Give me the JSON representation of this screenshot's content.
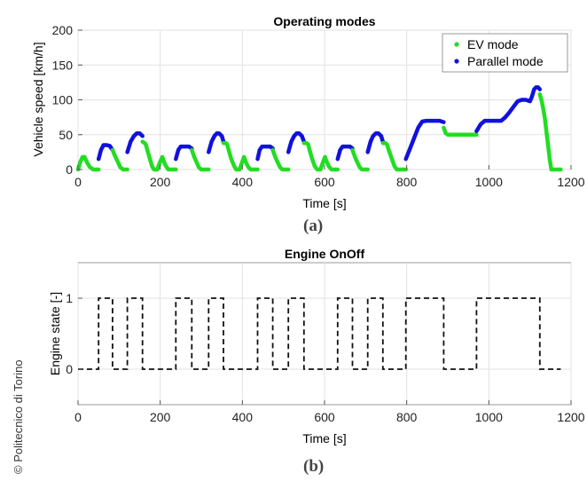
{
  "copyright": "© Politecnico di Torino",
  "panel_labels": [
    "(a)",
    "(b)"
  ],
  "colors": {
    "ev": "#22dd22",
    "parallel": "#1111dd",
    "engine": "#111111"
  },
  "chart_data": [
    {
      "type": "line",
      "title": "Operating modes",
      "xlabel": "Time [s]",
      "ylabel": "Vehicle speed [km/h]",
      "xlim": [
        0,
        1200
      ],
      "ylim": [
        0,
        200
      ],
      "xticks": [
        0,
        200,
        400,
        600,
        800,
        1000,
        1200
      ],
      "yticks": [
        0,
        50,
        100,
        150,
        200
      ],
      "grid": true,
      "legend_position": "top-right",
      "series": [
        {
          "name": "EV mode",
          "x": [
            0,
            5,
            11,
            16,
            22,
            28,
            37,
            43,
            50
          ],
          "y": [
            0,
            10,
            18,
            18,
            10,
            4,
            0,
            0,
            0
          ]
        },
        {
          "name": "Parallel mode",
          "x": [
            50,
            56,
            62,
            70,
            77,
            84
          ],
          "y": [
            15,
            28,
            35,
            35,
            34,
            28
          ]
        },
        {
          "name": "EV mode",
          "x": [
            84,
            91,
            96,
            103,
            110,
            114,
            120
          ],
          "y": [
            28,
            18,
            12,
            3,
            0,
            0,
            0
          ]
        },
        {
          "name": "Parallel mode",
          "x": [
            120,
            128,
            136,
            143,
            150,
            157
          ],
          "y": [
            25,
            40,
            48,
            52,
            52,
            48
          ]
        },
        {
          "name": "EV mode",
          "x": [
            157,
            162,
            165,
            170,
            175,
            180,
            185,
            190,
            193,
            199,
            205,
            210,
            215,
            220,
            223,
            230,
            238
          ],
          "y": [
            40,
            38,
            36,
            25,
            15,
            5,
            0,
            0,
            0,
            10,
            18,
            10,
            4,
            0,
            0,
            0,
            0
          ]
        },
        {
          "name": "Parallel mode",
          "x": [
            238,
            244,
            250,
            256,
            262,
            270,
            277
          ],
          "y": [
            15,
            28,
            33,
            33,
            33,
            33,
            30
          ]
        },
        {
          "name": "EV mode",
          "x": [
            277,
            283,
            289,
            294,
            300,
            305,
            310,
            315,
            318
          ],
          "y": [
            28,
            18,
            10,
            3,
            0,
            0,
            0,
            0,
            0
          ]
        },
        {
          "name": "Parallel mode",
          "x": [
            318,
            325,
            332,
            338,
            343,
            350,
            354
          ],
          "y": [
            25,
            40,
            48,
            52,
            52,
            48,
            40
          ]
        },
        {
          "name": "EV mode",
          "x": [
            354,
            360,
            363,
            368,
            373,
            380,
            385,
            390,
            393,
            399,
            404,
            409,
            414,
            420,
            425,
            430,
            437
          ],
          "y": [
            38,
            38,
            36,
            25,
            15,
            5,
            0,
            0,
            0,
            10,
            18,
            10,
            4,
            0,
            0,
            0,
            0
          ]
        },
        {
          "name": "Parallel mode",
          "x": [
            437,
            442,
            448,
            454,
            460,
            468,
            474
          ],
          "y": [
            15,
            28,
            33,
            33,
            33,
            33,
            30
          ]
        },
        {
          "name": "EV mode",
          "x": [
            474,
            480,
            486,
            492,
            497,
            503,
            508,
            512
          ],
          "y": [
            28,
            18,
            10,
            3,
            0,
            0,
            0,
            0
          ]
        },
        {
          "name": "Parallel mode",
          "x": [
            512,
            519,
            526,
            532,
            538,
            545,
            550
          ],
          "y": [
            25,
            40,
            48,
            52,
            52,
            48,
            40
          ]
        },
        {
          "name": "EV mode",
          "x": [
            550,
            556,
            560,
            565,
            570,
            576,
            582,
            587,
            590,
            596,
            601,
            606,
            611,
            617,
            622,
            627,
            632
          ],
          "y": [
            38,
            38,
            36,
            25,
            15,
            5,
            0,
            0,
            0,
            10,
            18,
            10,
            4,
            0,
            0,
            0,
            0
          ]
        },
        {
          "name": "Parallel mode",
          "x": [
            632,
            638,
            644,
            650,
            656,
            662,
            668
          ],
          "y": [
            15,
            28,
            33,
            33,
            33,
            33,
            30
          ]
        },
        {
          "name": "EV mode",
          "x": [
            668,
            674,
            680,
            686,
            691,
            697,
            702,
            705
          ],
          "y": [
            28,
            18,
            10,
            3,
            0,
            0,
            0,
            0
          ]
        },
        {
          "name": "Parallel mode",
          "x": [
            705,
            712,
            718,
            725,
            731,
            738,
            742
          ],
          "y": [
            25,
            40,
            48,
            52,
            52,
            48,
            40
          ]
        },
        {
          "name": "EV mode",
          "x": [
            742,
            748,
            752,
            758,
            764,
            770,
            776,
            782,
            788,
            794,
            798
          ],
          "y": [
            38,
            38,
            36,
            25,
            15,
            5,
            0,
            0,
            0,
            0,
            0
          ]
        },
        {
          "name": "Parallel mode",
          "x": [
            798,
            808,
            818,
            828,
            838,
            848,
            860,
            870,
            880,
            890
          ],
          "y": [
            15,
            30,
            45,
            60,
            69,
            70,
            70,
            70,
            70,
            68
          ]
        },
        {
          "name": "EV mode",
          "x": [
            890,
            895,
            900,
            910,
            930,
            950,
            970
          ],
          "y": [
            60,
            52,
            50,
            50,
            50,
            50,
            50
          ]
        },
        {
          "name": "Parallel mode",
          "x": [
            970,
            980,
            990,
            1000,
            1010,
            1020,
            1030,
            1040,
            1050,
            1060,
            1070,
            1080,
            1090,
            1100,
            1105,
            1110,
            1115,
            1120,
            1124
          ],
          "y": [
            55,
            65,
            70,
            70,
            70,
            70,
            70,
            75,
            82,
            90,
            98,
            100,
            100,
            98,
            105,
            115,
            118,
            118,
            115
          ]
        },
        {
          "name": "EV mode",
          "x": [
            1124,
            1128,
            1132,
            1136,
            1140,
            1144,
            1148,
            1152,
            1156,
            1160,
            1165,
            1170,
            1175
          ],
          "y": [
            108,
            100,
            88,
            75,
            55,
            35,
            15,
            0,
            0,
            0,
            0,
            0,
            0
          ]
        }
      ]
    },
    {
      "type": "line",
      "title": "Engine OnOff",
      "xlabel": "Time [s]",
      "ylabel": "Engine state [-]",
      "xlim": [
        0,
        1200
      ],
      "ylim": [
        -0.5,
        1.5
      ],
      "xticks": [
        0,
        200,
        400,
        600,
        800,
        1000,
        1200
      ],
      "yticks": [
        0,
        1
      ],
      "grid": true,
      "line_style": "dashed",
      "series": [
        {
          "name": "",
          "x": [
            0,
            50,
            50,
            84,
            84,
            120,
            120,
            157,
            157,
            238,
            238,
            277,
            277,
            318,
            318,
            354,
            354,
            437,
            437,
            474,
            474,
            512,
            512,
            550,
            550,
            632,
            632,
            668,
            668,
            705,
            705,
            742,
            742,
            798,
            798,
            890,
            890,
            970,
            970,
            1124,
            1124,
            1175
          ],
          "y": [
            0,
            0,
            1,
            1,
            0,
            0,
            1,
            1,
            0,
            0,
            1,
            1,
            0,
            0,
            1,
            1,
            0,
            0,
            1,
            1,
            0,
            0,
            1,
            1,
            0,
            0,
            1,
            1,
            0,
            0,
            1,
            1,
            0,
            0,
            1,
            1,
            0,
            0,
            1,
            1,
            0,
            0
          ]
        }
      ]
    }
  ]
}
